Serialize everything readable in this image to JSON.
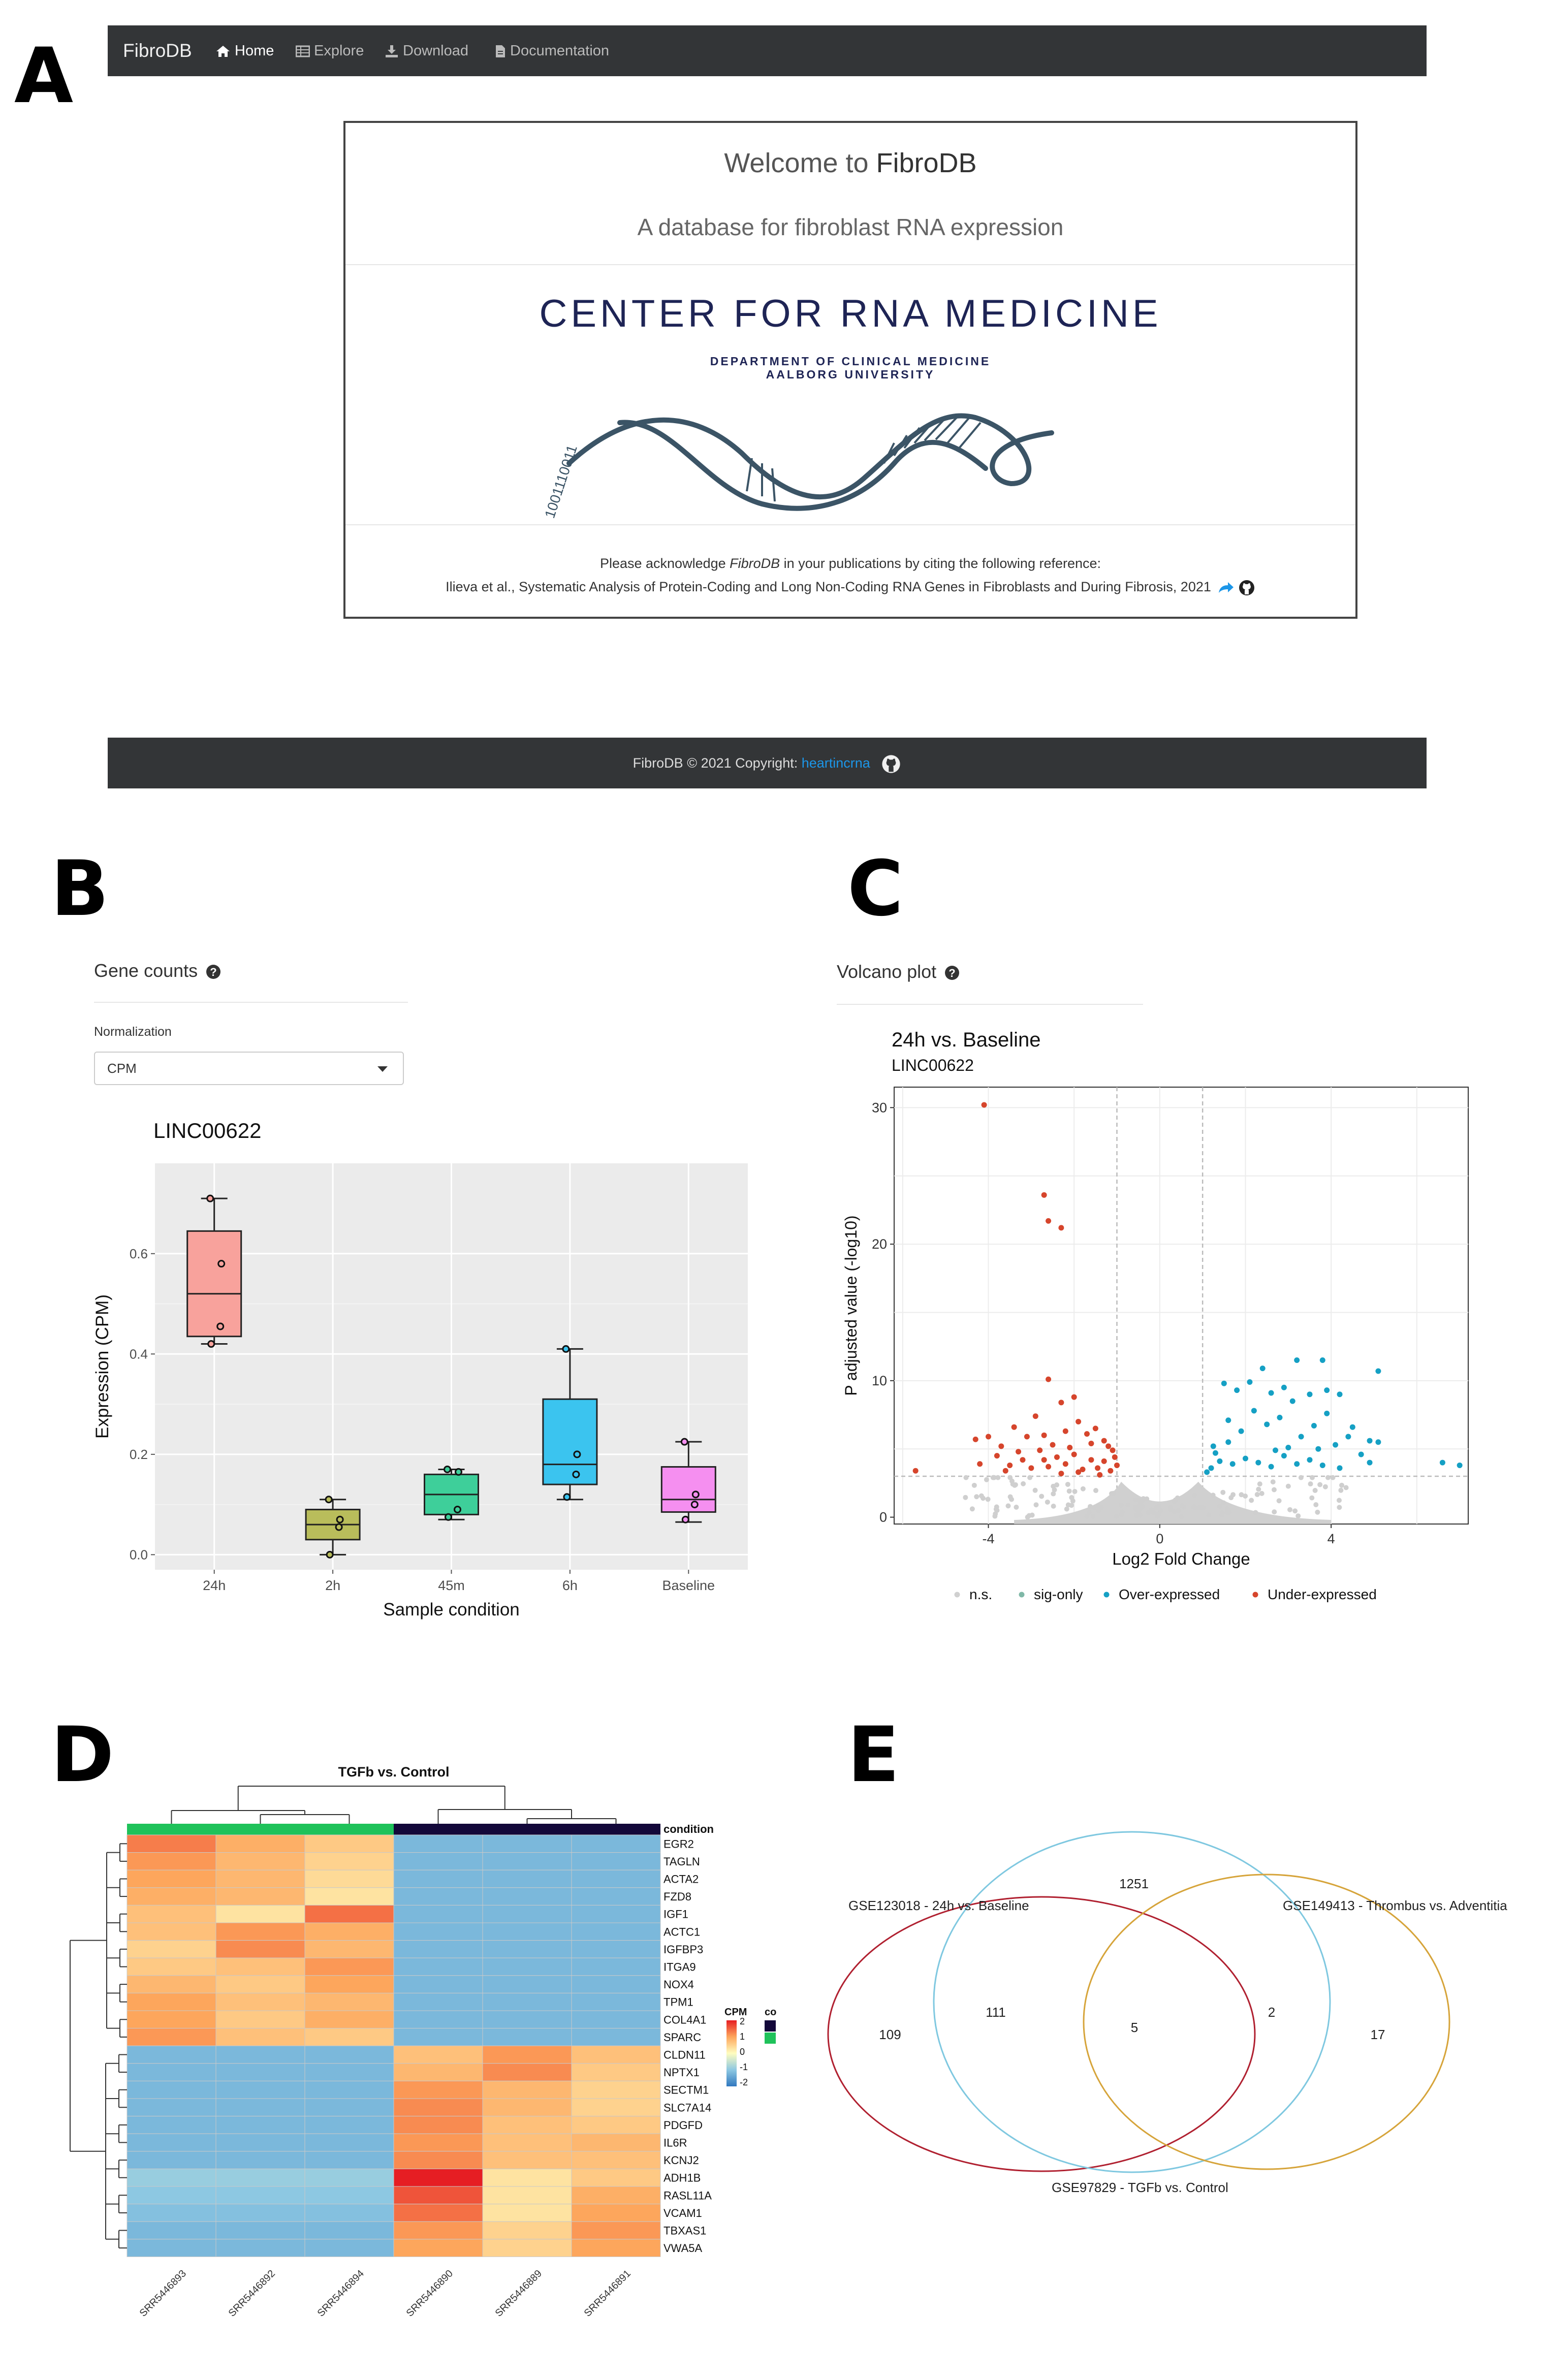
{
  "panel_labels": {
    "a": "A",
    "b": "B",
    "c": "C",
    "d": "D",
    "e": "E"
  },
  "navbar": {
    "brand": "FibroDB",
    "items": [
      {
        "label": "Home",
        "icon": "home-icon"
      },
      {
        "label": "Explore",
        "icon": "table-icon"
      },
      {
        "label": "Download",
        "icon": "download-icon"
      },
      {
        "label": "Documentation",
        "icon": "document-icon"
      }
    ]
  },
  "welcome": {
    "title_prefix": "Welcome to ",
    "title_name": "FibroDB",
    "subtitle": "A database for fibroblast RNA expression",
    "center_title": "CENTER FOR RNA MEDICINE",
    "dept_line1": "DEPARTMENT OF CLINICAL MEDICINE",
    "dept_line2": "AALBORG UNIVERSITY",
    "binary": "1001110011",
    "ack_prefix": "Please acknowledge ",
    "ack_name": "FibroDB",
    "ack_suffix": " in your publications by citing the following reference:",
    "reference": "Ilieva et al., Systematic Analysis of Protein-Coding and Long Non-Coding RNA Genes in Fibroblasts and During Fibrosis, 2021"
  },
  "footer": {
    "text": "FibroDB © 2021 Copyright: ",
    "link": "heartincrna"
  },
  "gene_counts": {
    "header": "Gene counts",
    "normalization_label": "Normalization",
    "normalization_value": "CPM"
  },
  "volcano_panel": {
    "header": "Volcano plot"
  },
  "colors": {
    "navbar": "#333537",
    "link": "#1c96e8",
    "under": "#d6452c",
    "over": "#15a0c4",
    "ns": "#cfcfcf"
  },
  "chart_data": [
    {
      "id": "boxplot",
      "type": "box",
      "title": "LINC00622",
      "xlabel": "Sample condition",
      "ylabel": "Expression (CPM)",
      "ylim": [
        -0.03,
        0.78
      ],
      "yticks": [
        0.0,
        0.2,
        0.4,
        0.6
      ],
      "ytick_labels": [
        "0.0",
        "0.2",
        "0.4",
        "0.6"
      ],
      "categories": [
        "24h",
        "2h",
        "45m",
        "6h",
        "Baseline"
      ],
      "colors": [
        "#f8a29c",
        "#b9bd5b",
        "#3ecf9a",
        "#3bc4ef",
        "#f58ff0"
      ],
      "boxes": [
        {
          "min": 0.42,
          "q1": 0.435,
          "median": 0.52,
          "q3": 0.645,
          "max": 0.71,
          "points": [
            0.71,
            0.58,
            0.455,
            0.42
          ]
        },
        {
          "min": 0.0,
          "q1": 0.03,
          "median": 0.06,
          "q3": 0.09,
          "max": 0.11,
          "points": [
            0.11,
            0.07,
            0.055,
            0.0
          ]
        },
        {
          "min": 0.07,
          "q1": 0.08,
          "median": 0.12,
          "q3": 0.16,
          "max": 0.17,
          "points": [
            0.17,
            0.165,
            0.09,
            0.075
          ]
        },
        {
          "min": 0.11,
          "q1": 0.14,
          "median": 0.18,
          "q3": 0.31,
          "max": 0.41,
          "points": [
            0.41,
            0.2,
            0.16,
            0.115
          ]
        },
        {
          "min": 0.065,
          "q1": 0.085,
          "median": 0.11,
          "q3": 0.175,
          "max": 0.225,
          "points": [
            0.225,
            0.12,
            0.1,
            0.07
          ]
        }
      ]
    },
    {
      "id": "volcano",
      "type": "scatter",
      "title": "24h vs. Baseline",
      "subtitle": "LINC00622",
      "xlabel": "Log2 Fold Change",
      "ylabel": "P adjusted value (-log10)",
      "xlim": [
        -6.2,
        7.2
      ],
      "ylim": [
        -0.5,
        31.5
      ],
      "xticks": [
        -4,
        0,
        4
      ],
      "xtick_labels": [
        "-4",
        "0",
        "4"
      ],
      "yticks": [
        0,
        10,
        20,
        30
      ],
      "ytick_labels": [
        "0",
        "10",
        "20",
        "30"
      ],
      "vlines": [
        -1,
        1
      ],
      "hline": 3,
      "legend": [
        "n.s.",
        "sig-only",
        "Over-expressed",
        "Under-expressed"
      ],
      "under_points": [
        [
          -4.1,
          30.2
        ],
        [
          -2.7,
          23.6
        ],
        [
          -2.6,
          21.7
        ],
        [
          -2.3,
          21.2
        ],
        [
          -2.6,
          10.1
        ],
        [
          -2.3,
          8.4
        ],
        [
          -2.0,
          8.8
        ],
        [
          -5.7,
          3.4
        ],
        [
          -4.3,
          5.7
        ],
        [
          -4.0,
          5.9
        ],
        [
          -3.7,
          5.2
        ],
        [
          -3.4,
          6.6
        ],
        [
          -3.1,
          5.9
        ],
        [
          -2.9,
          7.4
        ],
        [
          -2.7,
          6.0
        ],
        [
          -2.5,
          5.3
        ],
        [
          -2.2,
          6.3
        ],
        [
          -1.9,
          7.0
        ],
        [
          -1.7,
          6.1
        ],
        [
          -1.5,
          6.5
        ],
        [
          -1.3,
          5.6
        ],
        [
          -1.1,
          4.9
        ],
        [
          -4.2,
          3.9
        ],
        [
          -3.8,
          4.5
        ],
        [
          -3.5,
          3.8
        ],
        [
          -3.2,
          4.2
        ],
        [
          -3.0,
          3.6
        ],
        [
          -2.8,
          4.9
        ],
        [
          -2.6,
          3.7
        ],
        [
          -2.4,
          4.4
        ],
        [
          -2.2,
          3.9
        ],
        [
          -2.0,
          4.6
        ],
        [
          -1.8,
          3.5
        ],
        [
          -1.6,
          4.2
        ],
        [
          -1.45,
          3.6
        ],
        [
          -1.3,
          4.1
        ],
        [
          -1.15,
          3.4
        ],
        [
          -1.05,
          4.4
        ],
        [
          -1.2,
          5.2
        ],
        [
          -1.6,
          5.4
        ],
        [
          -2.1,
          5.1
        ],
        [
          -2.7,
          4.2
        ],
        [
          -3.3,
          4.8
        ],
        [
          -1.4,
          3.1
        ],
        [
          -1.9,
          3.3
        ],
        [
          -2.3,
          3.2
        ],
        [
          -3.6,
          3.4
        ],
        [
          -1.0,
          3.8
        ]
      ],
      "over_points": [
        [
          1.3,
          4.7
        ],
        [
          1.6,
          5.5
        ],
        [
          1.9,
          6.3
        ],
        [
          2.2,
          7.8
        ],
        [
          2.5,
          6.8
        ],
        [
          2.8,
          7.3
        ],
        [
          3.1,
          8.5
        ],
        [
          3.3,
          5.9
        ],
        [
          3.6,
          6.7
        ],
        [
          3.9,
          7.6
        ],
        [
          4.1,
          5.3
        ],
        [
          4.4,
          5.9
        ],
        [
          4.7,
          4.6
        ],
        [
          4.9,
          5.6
        ],
        [
          5.1,
          5.5
        ],
        [
          1.2,
          3.6
        ],
        [
          1.4,
          4.1
        ],
        [
          1.7,
          3.9
        ],
        [
          2.0,
          4.3
        ],
        [
          2.3,
          4.0
        ],
        [
          2.6,
          3.7
        ],
        [
          2.9,
          4.5
        ],
        [
          3.2,
          3.9
        ],
        [
          3.5,
          4.2
        ],
        [
          3.8,
          3.8
        ],
        [
          4.2,
          3.6
        ],
        [
          1.5,
          9.8
        ],
        [
          2.1,
          9.9
        ],
        [
          2.6,
          9.1
        ],
        [
          2.9,
          9.5
        ],
        [
          3.5,
          9.0
        ],
        [
          3.9,
          9.3
        ],
        [
          4.2,
          9.0
        ],
        [
          1.8,
          9.3
        ],
        [
          2.4,
          10.9
        ],
        [
          3.2,
          11.5
        ],
        [
          3.8,
          11.5
        ],
        [
          5.1,
          10.7
        ],
        [
          6.6,
          4.0
        ],
        [
          7.0,
          3.8
        ],
        [
          4.9,
          4.0
        ],
        [
          1.25,
          5.2
        ],
        [
          1.6,
          7.1
        ],
        [
          3.0,
          5.1
        ],
        [
          3.7,
          5.0
        ],
        [
          2.7,
          4.9
        ],
        [
          4.5,
          6.6
        ],
        [
          1.1,
          3.3
        ]
      ]
    },
    {
      "id": "heatmap",
      "type": "heatmap",
      "title": "TGFb vs. Control",
      "rows": [
        "EGR2",
        "TAGLN",
        "ACTA2",
        "FZD8",
        "IGF1",
        "ACTC1",
        "IGFBP3",
        "ITGA9",
        "NOX4",
        "TPM1",
        "COL4A1",
        "SPARC",
        "CLDN11",
        "NPTX1",
        "SECTM1",
        "SLC7A14",
        "PDGFD",
        "IL6R",
        "KCNJ2",
        "ADH1B",
        "RASL11A",
        "VCAM1",
        "TBXAS1",
        "VWA5A"
      ],
      "columns": [
        "SRR5446893",
        "SRR5446892",
        "SRR5446894",
        "SRR5446890",
        "SRR5446889",
        "SRR5446891"
      ],
      "values": [
        [
          1.3,
          0.9,
          0.6,
          -1.2,
          -1.2,
          -1.2
        ],
        [
          1.1,
          0.8,
          0.5,
          -1.2,
          -1.2,
          -1.2
        ],
        [
          1.0,
          0.8,
          0.4,
          -1.2,
          -1.2,
          -1.2
        ],
        [
          0.9,
          0.8,
          0.3,
          -1.2,
          -1.2,
          -1.2
        ],
        [
          0.7,
          0.3,
          1.4,
          -1.2,
          -1.2,
          -1.2
        ],
        [
          0.7,
          1.1,
          0.9,
          -1.2,
          -1.2,
          -1.2
        ],
        [
          0.5,
          1.2,
          0.8,
          -1.2,
          -1.2,
          -1.2
        ],
        [
          0.6,
          0.7,
          1.1,
          -1.2,
          -1.2,
          -1.2
        ],
        [
          0.8,
          0.6,
          1.0,
          -1.2,
          -1.2,
          -1.2
        ],
        [
          1.0,
          0.7,
          0.8,
          -1.2,
          -1.2,
          -1.2
        ],
        [
          1.0,
          0.6,
          0.9,
          -1.2,
          -1.2,
          -1.2
        ],
        [
          1.1,
          0.7,
          0.6,
          -1.2,
          -1.2,
          -1.2
        ],
        [
          -1.2,
          -1.2,
          -1.2,
          0.7,
          1.1,
          0.7
        ],
        [
          -1.2,
          -1.2,
          -1.2,
          0.8,
          1.2,
          0.6
        ],
        [
          -1.2,
          -1.2,
          -1.2,
          1.1,
          0.8,
          0.5
        ],
        [
          -1.2,
          -1.2,
          -1.2,
          1.2,
          0.8,
          0.5
        ],
        [
          -1.2,
          -1.2,
          -1.2,
          1.2,
          0.7,
          0.6
        ],
        [
          -1.2,
          -1.2,
          -1.2,
          1.1,
          0.7,
          0.8
        ],
        [
          -1.2,
          -1.2,
          -1.2,
          1.2,
          0.7,
          0.7
        ],
        [
          -0.9,
          -0.9,
          -0.9,
          2.0,
          0.3,
          0.6
        ],
        [
          -1.0,
          -1.0,
          -1.0,
          1.6,
          0.3,
          0.9
        ],
        [
          -1.1,
          -1.1,
          -1.1,
          1.4,
          0.3,
          1.0
        ],
        [
          -1.2,
          -1.2,
          -1.2,
          1.1,
          0.5,
          1.1
        ],
        [
          -1.2,
          -1.2,
          -1.2,
          1.0,
          0.5,
          1.0
        ]
      ],
      "annotation_label": "condition",
      "condition_colors": [
        "#1fc25a",
        "#1fc25a",
        "#1fc25a",
        "#13083a",
        "#13083a",
        "#13083a"
      ],
      "legend_title": "CPM",
      "legend_ticks": [
        "2",
        "1",
        "0",
        "-1",
        "-2"
      ],
      "annotation_legend_title": "co"
    },
    {
      "id": "venn",
      "type": "venn",
      "sets": [
        "GSE123018 - 24h vs. Baseline",
        "GSE97829 - TGFb vs. Control",
        "GSE149413 - Thrombus vs. Adventitia"
      ],
      "regions": {
        "top": "1251",
        "left_only": "109",
        "left_top": "111",
        "center": "5",
        "top_right": "2",
        "right_only": "17"
      }
    }
  ]
}
